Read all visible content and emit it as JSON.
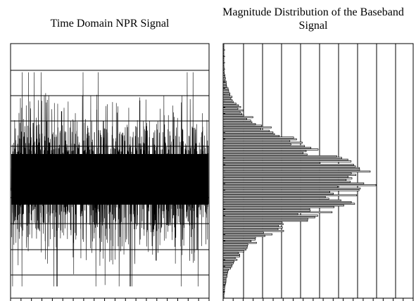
{
  "chart_data": [
    {
      "type": "line",
      "title": "Time Domain NPR Signal",
      "xlabel": "",
      "ylabel": "",
      "grid": true,
      "gridlines_y": 8,
      "gridlines_x": 0,
      "x_minor_ticks": 19,
      "samples": 2200,
      "envelope": {
        "typical_peak": 0.62,
        "max_peak": 0.88,
        "min_peak": -0.88,
        "dense_core": 0.42
      },
      "series": [
        {
          "color": "#000000"
        }
      ]
    },
    {
      "type": "bar",
      "orientation": "horizontal",
      "title": "Magnitude Distribution of the Baseband Signal",
      "xlabel": "",
      "ylabel": "",
      "grid": true,
      "gridlines_x": 9,
      "bins": 150,
      "bin_range": [
        -1,
        1
      ],
      "distribution": {
        "shape": "gaussian",
        "mean": 0,
        "std": 0.28
      },
      "xlim": [
        0,
        1
      ],
      "peak_value": 0.73,
      "series": [
        {
          "color": "#000000"
        }
      ]
    }
  ]
}
